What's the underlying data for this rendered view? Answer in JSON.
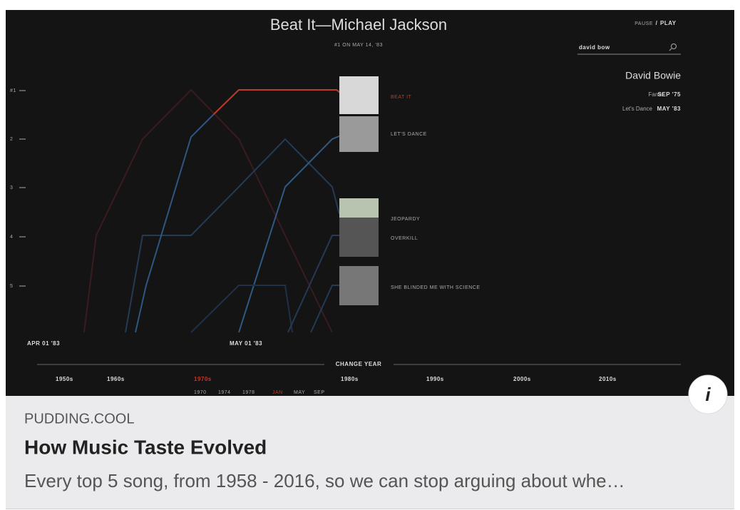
{
  "site": "PUDDING.COOL",
  "title": "How Music Taste Evolved",
  "description": "Every top 5 song, from 1958 - 2016, so we can stop arguing about whe…",
  "info_button": "i",
  "preview": {
    "song_title": "Beat It—Michael Jackson",
    "subtitle": "#1 ON MAY 14, '83",
    "controls": {
      "pause": "PAUSE",
      "separator": "/",
      "play": "PLAY"
    },
    "search_query": "david bow",
    "artist": "David Bowie",
    "artist_songs": [
      {
        "name": "Fame",
        "date": "SEP '75"
      },
      {
        "name": "Let's Dance",
        "date": "MAY '83"
      }
    ],
    "ranks": [
      "#1",
      "2",
      "3",
      "4",
      "5"
    ],
    "songs": [
      "BEAT IT",
      "LET'S DANCE",
      "JEOPARDY",
      "OVERKILL",
      "SHE BLINDED ME WITH SCIENCE"
    ],
    "dates": [
      "APR 01 '83",
      "MAY 01 '83"
    ],
    "change_year": "CHANGE YEAR",
    "decades": [
      "1950s",
      "1960s",
      "1970s",
      "1980s",
      "1990s",
      "2000s",
      "2010s"
    ],
    "years": [
      "1970",
      "1974",
      "1978",
      "JAN",
      "MAY",
      "SEP"
    ]
  }
}
